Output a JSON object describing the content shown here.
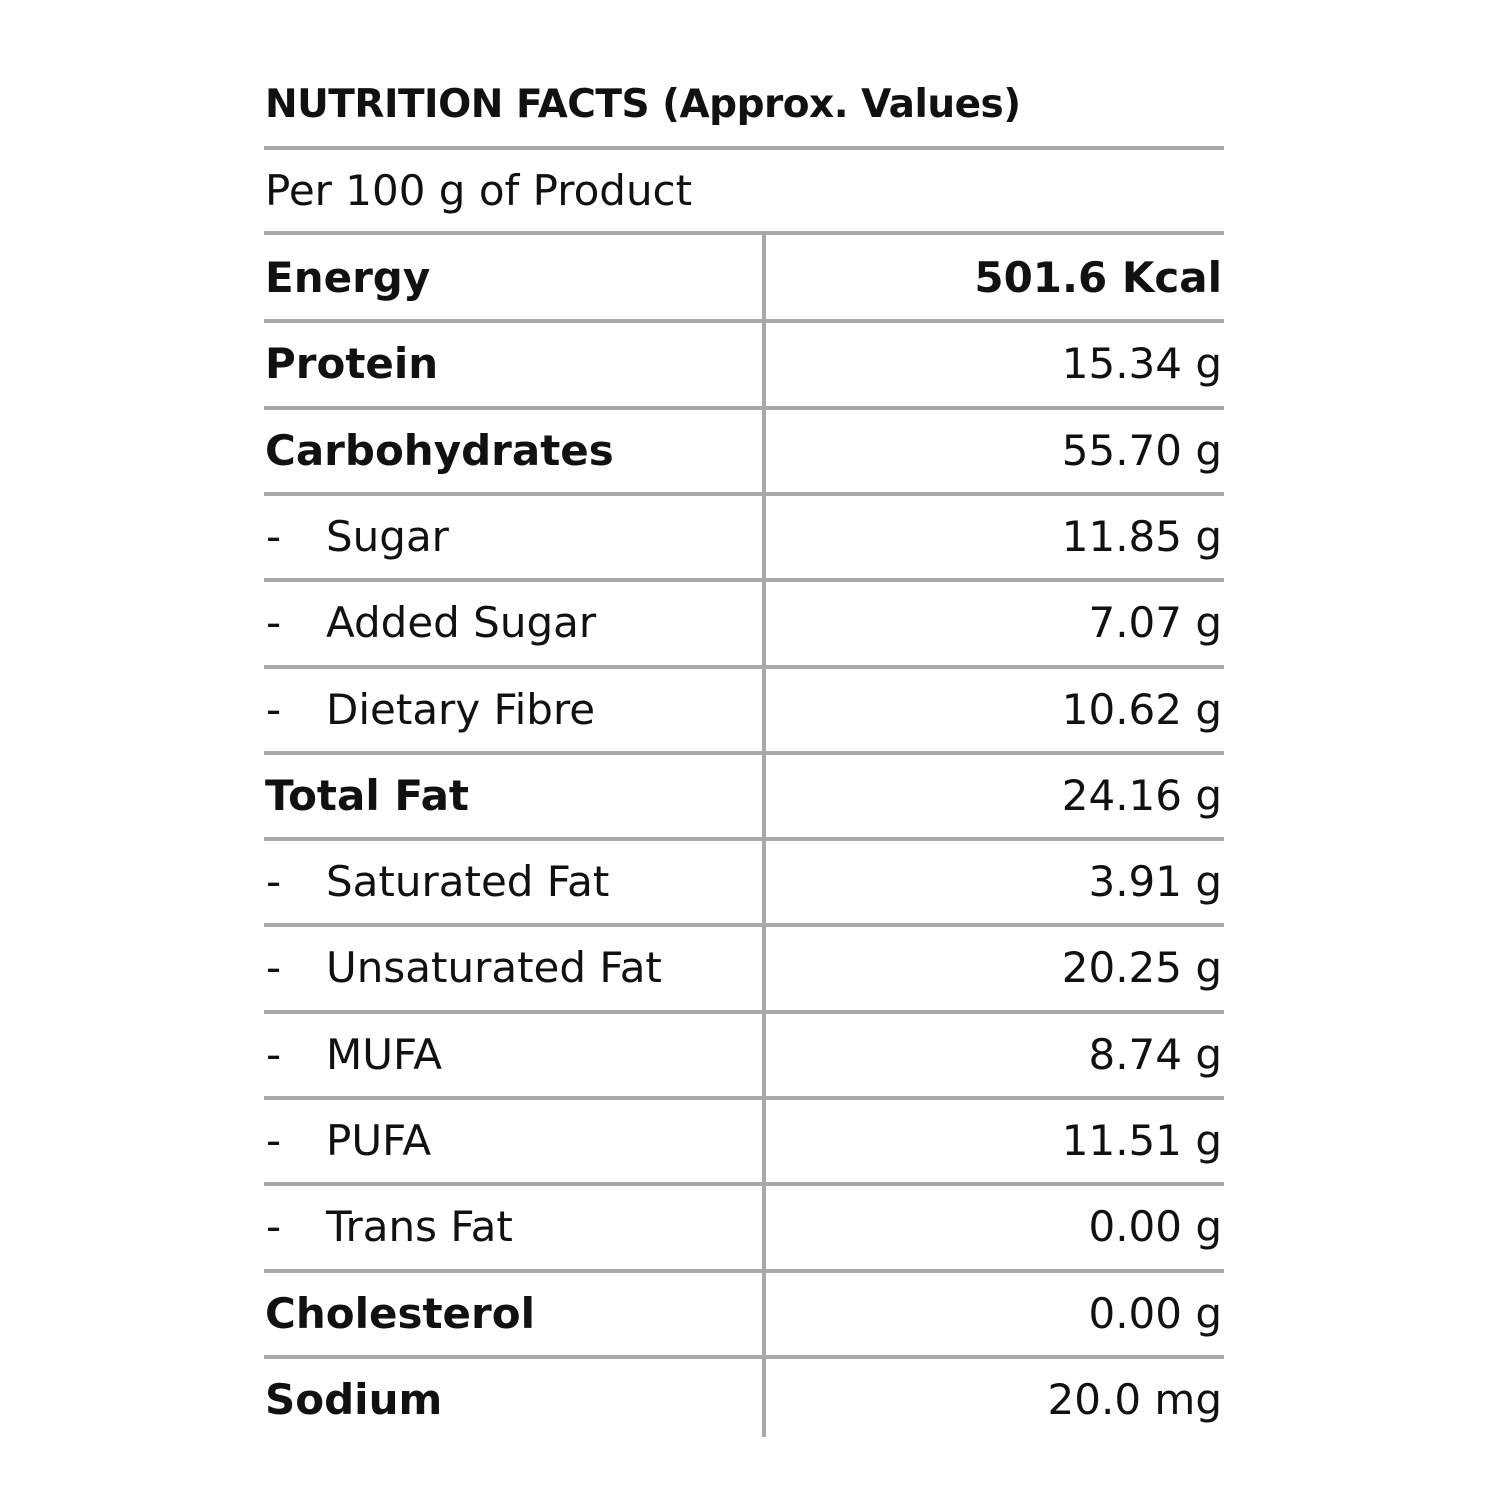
{
  "title": "NUTRITION FACTS (Approx. Values)",
  "subtitle": "Per 100 g of Product",
  "table": {
    "rows": [
      {
        "label": "Energy",
        "value": "501.6 Kcal",
        "value_bold": true
      },
      {
        "label": "Protein",
        "value": "15.34 g"
      },
      {
        "label": "Carbohydrates",
        "value": "55.70 g"
      },
      {
        "prefix": "-",
        "label": "Sugar",
        "value": "11.85 g"
      },
      {
        "prefix": "-",
        "label": "Added Sugar",
        "value": "7.07 g"
      },
      {
        "prefix": "-",
        "label": "Dietary Fibre",
        "value": "10.62 g"
      },
      {
        "label": "Total Fat",
        "value": "24.16 g"
      },
      {
        "prefix": "-",
        "label": "Saturated Fat",
        "value": "3.91 g"
      },
      {
        "prefix": "-",
        "label": "Unsaturated Fat",
        "value": "20.25 g"
      },
      {
        "prefix": "-",
        "label": "MUFA",
        "value": "8.74 g"
      },
      {
        "prefix": "-",
        "label": "PUFA",
        "value": "11.51 g"
      },
      {
        "prefix": "-",
        "label": "Trans Fat",
        "value": "0.00 g"
      },
      {
        "label": "Cholesterol",
        "value": "0.00 g"
      },
      {
        "label": "Sodium",
        "value": "20.0 mg"
      }
    ]
  }
}
